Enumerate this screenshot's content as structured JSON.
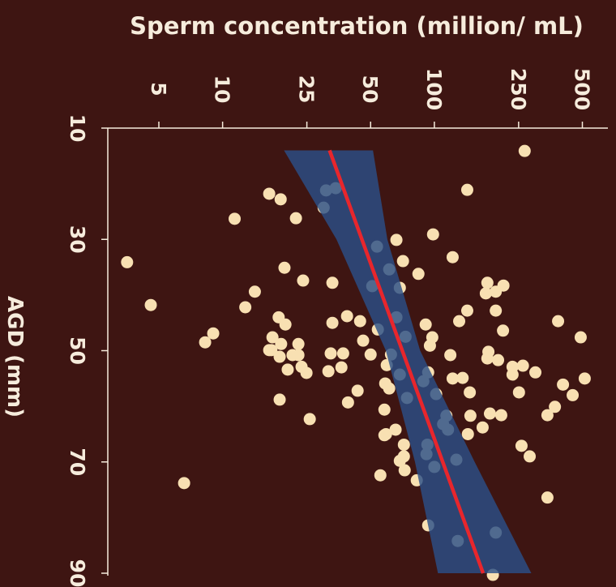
{
  "chart_data": {
    "type": "scatter",
    "title": "Sperm concentration (million/ mL)",
    "x_label": "AGD (mm)",
    "xlim": [
      10,
      90
    ],
    "xticks": [
      10,
      30,
      50,
      70,
      90
    ],
    "ylim": [
      2.87,
      660
    ],
    "yticks": [
      5,
      10,
      25,
      50,
      100,
      250,
      500
    ],
    "ylog": true,
    "background": "#3e1512",
    "color": "#f8e0b2",
    "x": [
      14.1,
      21.1,
      21.8,
      22.8,
      21.2,
      20.8,
      24.3,
      26.3,
      26.2,
      29.1,
      30.1,
      31.3,
      33.2,
      34.1,
      33.9,
      35.4,
      36.2,
      35.1,
      37.4,
      37.8,
      37.8,
      38.3,
      38.4,
      39.7,
      38.7,
      39.4,
      39.4,
      41.8,
      42.2,
      42.8,
      42.8,
      43.8,
      44.7,
      44.0,
      44.0,
      45.3,
      45.0,
      44.7,
      44.7,
      46.4,
      46.2,
      45.3,
      46.9,
      47.6,
      48.5,
      48.8,
      48.8,
      48.2,
      47.5,
      47.6,
      47.6,
      49.9,
      50.7,
      49.1,
      50.8,
      49.9,
      50.5,
      50.5,
      50.7,
      51.1,
      50.8,
      50.2,
      51.4,
      51.7,
      52.9,
      53.4,
      53.7,
      54.0,
      53.0,
      52.6,
      53.9,
      50.8,
      52.9,
      52.7,
      53.9,
      54.3,
      54.3,
      55.9,
      56.8,
      55.5,
      54.9,
      55.0,
      56.1,
      55.0,
      59.3,
      57.2,
      58.8,
      58.5,
      57.8,
      57.5,
      57.5,
      58.0,
      60.1,
      61.6,
      60.6,
      61.3,
      61.6,
      62.3,
      61.7,
      61.7,
      63.2,
      65.0,
      63.8,
      65.0,
      64.2,
      64.2,
      65.2,
      66.9,
      66.9,
      68.6,
      67.1,
      69.0,
      69.0,
      69.8,
      69.6,
      70.9,
      71.5,
      72.4,
      73.3,
      73.8,
      76.4,
      81.4,
      82.7,
      84.2,
      90.3
    ],
    "values": [
      267,
      143,
      16.6,
      18.8,
      30.8,
      34.2,
      30.0,
      11.4,
      22.2,
      98.6,
      66.2,
      53.6,
      122,
      3.54,
      71.1,
      61.2,
      84.1,
      19.6,
      24.0,
      33.0,
      178,
      212,
      50.9,
      175,
      68.7,
      195,
      14.2,
      4.58,
      12.8,
      143,
      195,
      38.7,
      44.6,
      66.2,
      18.4,
      19.8,
      33.0,
      131,
      384,
      211,
      54.1,
      91.0,
      9.03,
      17.2,
      8.27,
      18.9,
      22.8,
      46.1,
      73.1,
      491,
      97.8,
      17.0,
      62.4,
      95.3,
      22.8,
      16.6,
      32.4,
      37.1,
      50.0,
      18.6,
      21.4,
      180,
      178,
      200,
      23.6,
      20.3,
      31.6,
      24.9,
      36.4,
      59.6,
      93.5,
      119,
      234,
      262,
      300,
      234,
      68.7,
      58.6,
      61.2,
      88.7,
      136,
      122,
      405,
      513,
      39.1,
      43.4,
      18.6,
      74.3,
      102,
      147,
      251,
      450,
      371,
      342,
      58.1,
      183,
      207,
      25.8,
      148,
      114,
      110,
      144,
      169,
      59.1,
      65.6,
      116,
      58.1,
      92.7,
      71.8,
      91.8,
      258,
      282,
      71.8,
      68.7,
      127,
      100,
      72.4,
      55.6,
      82.6,
      6.58,
      342,
      93.5,
      195,
      129,
      189
    ],
    "band": {
      "color": "#2b4f88",
      "x": [
        14,
        30,
        50,
        70,
        90
      ],
      "lower": [
        19.5,
        34.5,
        59,
        81,
        104
      ],
      "upper": [
        51.3,
        60,
        85.7,
        155,
        287
      ]
    },
    "fit": {
      "color": "#e8262c",
      "x": [
        14,
        90
      ],
      "values": [
        32,
        170
      ]
    }
  }
}
